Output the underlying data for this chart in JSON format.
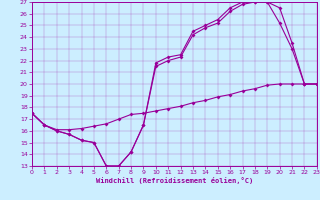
{
  "bg_color": "#cceeff",
  "line_color": "#990099",
  "xlabel": "Windchill (Refroidissement éolien,°C)",
  "xlim": [
    0,
    23
  ],
  "ylim": [
    13,
    27
  ],
  "xticks": [
    0,
    1,
    2,
    3,
    4,
    5,
    6,
    7,
    8,
    9,
    10,
    11,
    12,
    13,
    14,
    15,
    16,
    17,
    18,
    19,
    20,
    21,
    22,
    23
  ],
  "yticks": [
    13,
    14,
    15,
    16,
    17,
    18,
    19,
    20,
    21,
    22,
    23,
    24,
    25,
    26,
    27
  ],
  "curves": [
    {
      "x": [
        0,
        1,
        2,
        3,
        4,
        5,
        6,
        7,
        8,
        9,
        10,
        11,
        12,
        13,
        14,
        15,
        16,
        17,
        18,
        19,
        20,
        21,
        22,
        23
      ],
      "y": [
        17.5,
        16.5,
        16.0,
        15.7,
        15.2,
        15.0,
        13.0,
        13.0,
        14.2,
        16.5,
        21.8,
        22.3,
        22.5,
        24.5,
        25.0,
        25.5,
        26.5,
        27.0,
        27.0,
        27.0,
        26.5,
        23.5,
        20.0,
        20.0
      ]
    },
    {
      "x": [
        0,
        1,
        2,
        3,
        4,
        5,
        6,
        7,
        8,
        9,
        10,
        11,
        12,
        13,
        14,
        15,
        16,
        17,
        18,
        19,
        20,
        21,
        22,
        23
      ],
      "y": [
        17.5,
        16.5,
        16.0,
        15.7,
        15.2,
        15.0,
        13.0,
        13.0,
        14.2,
        16.5,
        21.5,
        22.0,
        22.3,
        24.2,
        24.8,
        25.2,
        26.2,
        26.8,
        27.0,
        27.0,
        25.2,
        23.0,
        20.0,
        20.0
      ]
    },
    {
      "x": [
        0,
        1,
        2,
        3,
        4,
        5,
        6,
        7,
        8,
        9,
        10,
        11,
        12,
        13,
        14,
        15,
        16,
        17,
        18,
        19,
        20,
        21,
        22,
        23
      ],
      "y": [
        17.5,
        16.5,
        16.1,
        16.1,
        16.2,
        16.4,
        16.6,
        17.0,
        17.4,
        17.5,
        17.7,
        17.9,
        18.1,
        18.4,
        18.6,
        18.9,
        19.1,
        19.4,
        19.6,
        19.9,
        20.0,
        20.0,
        20.0,
        20.0
      ]
    }
  ]
}
